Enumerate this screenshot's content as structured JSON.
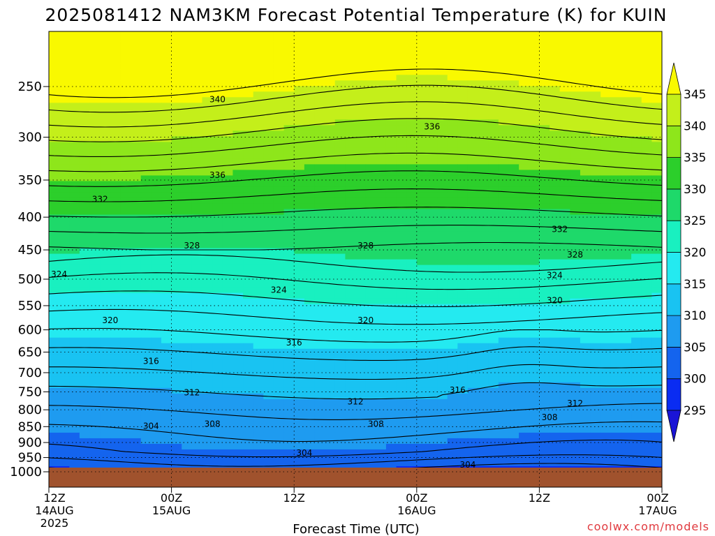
{
  "chart_data": {
    "type": "heatmap",
    "title": "2025081412 NAM3KM Forecast Potential Temperature (K) for KUIN",
    "xlabel": "Forecast Time (UTC)",
    "ylabel": "",
    "y_scale": "log",
    "ylim": [
      1000,
      200
    ],
    "xlim": [
      0,
      60
    ],
    "y_ticks": [
      250,
      300,
      350,
      400,
      450,
      500,
      550,
      600,
      650,
      700,
      750,
      800,
      850,
      900,
      950,
      1000
    ],
    "x_ticks": [
      {
        "hour": 0,
        "label": "12Z",
        "date": "14AUG",
        "year": "2025"
      },
      {
        "hour": 12,
        "label": "00Z",
        "date": "15AUG",
        "year": ""
      },
      {
        "hour": 24,
        "label": "12Z",
        "date": "",
        "year": ""
      },
      {
        "hour": 36,
        "label": "00Z",
        "date": "16AUG",
        "year": ""
      },
      {
        "hour": 48,
        "label": "12Z",
        "date": "",
        "year": ""
      },
      {
        "hour": 60,
        "label": "00Z",
        "date": "17AUG",
        "year": ""
      }
    ],
    "grid": true,
    "colorbar": {
      "unit": "K",
      "levels": [
        295,
        300,
        305,
        310,
        315,
        320,
        325,
        330,
        335,
        340,
        345
      ],
      "colors": [
        "#1a14d6",
        "#0a2cf2",
        "#1464ee",
        "#1e9bf0",
        "#19c3f2",
        "#24eaf0",
        "#19f0c0",
        "#1ed96a",
        "#2ccf2b",
        "#8ee61b",
        "#c4ef1a",
        "#f9f900"
      ],
      "extend": "both"
    },
    "contour_interval": 2,
    "ground_fill": "#a0522d",
    "surface_pressure": 985,
    "contour_labels": [
      {
        "value": 340,
        "hour": 16.5,
        "p": 262
      },
      {
        "value": 336,
        "hour": 16.5,
        "p": 344
      },
      {
        "value": 336,
        "hour": 37.5,
        "p": 289
      },
      {
        "value": 332,
        "hour": 5.0,
        "p": 375
      },
      {
        "value": 332,
        "hour": 50.0,
        "p": 418
      },
      {
        "value": 328,
        "hour": 14.0,
        "p": 443
      },
      {
        "value": 328,
        "hour": 31.0,
        "p": 443
      },
      {
        "value": 328,
        "hour": 51.5,
        "p": 458
      },
      {
        "value": 324,
        "hour": 1.0,
        "p": 491
      },
      {
        "value": 324,
        "hour": 22.5,
        "p": 520
      },
      {
        "value": 324,
        "hour": 49.5,
        "p": 493
      },
      {
        "value": 320,
        "hour": 6.0,
        "p": 580
      },
      {
        "value": 320,
        "hour": 31.0,
        "p": 580
      },
      {
        "value": 320,
        "hour": 49.5,
        "p": 540
      },
      {
        "value": 316,
        "hour": 24.0,
        "p": 628
      },
      {
        "value": 316,
        "hour": 10.0,
        "p": 672
      },
      {
        "value": 316,
        "hour": 40.0,
        "p": 745
      },
      {
        "value": 312,
        "hour": 14.0,
        "p": 752
      },
      {
        "value": 312,
        "hour": 30.0,
        "p": 777
      },
      {
        "value": 312,
        "hour": 51.5,
        "p": 782
      },
      {
        "value": 308,
        "hour": 16.0,
        "p": 842
      },
      {
        "value": 308,
        "hour": 32.0,
        "p": 842
      },
      {
        "value": 308,
        "hour": 49.0,
        "p": 822
      },
      {
        "value": 304,
        "hour": 10.0,
        "p": 848
      },
      {
        "value": 304,
        "hour": 25.0,
        "p": 935
      },
      {
        "value": 304,
        "hour": 41.0,
        "p": 975
      }
    ]
  },
  "credit": "coolwx.com/models"
}
